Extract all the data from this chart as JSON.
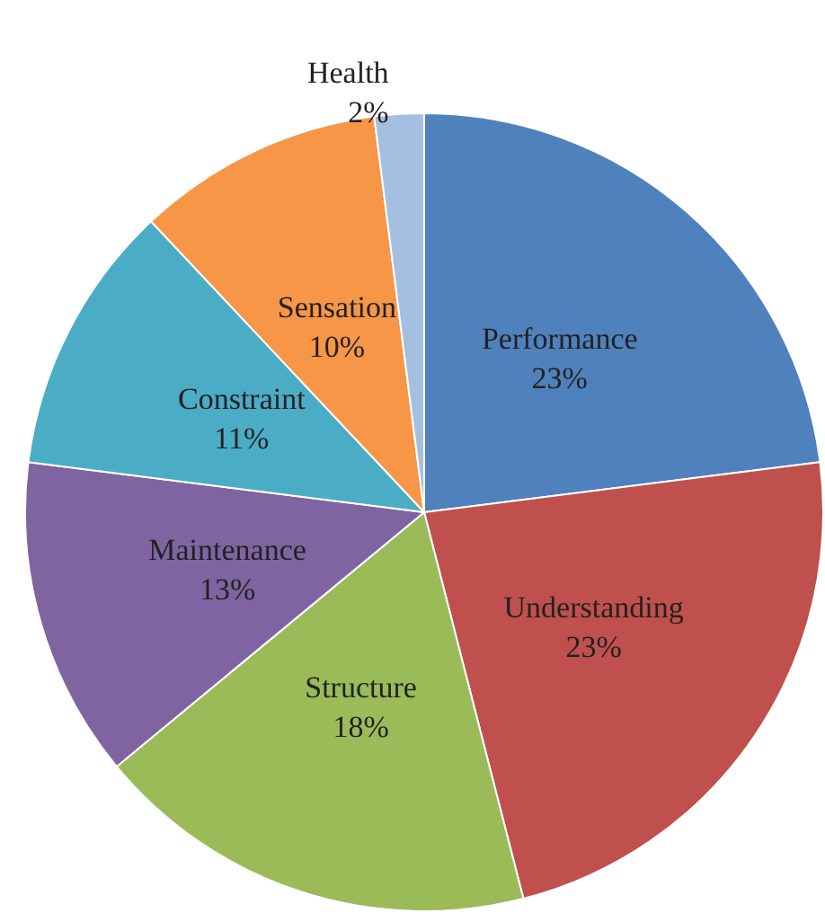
{
  "chart_data": {
    "type": "pie",
    "categories": [
      "Performance",
      "Understanding",
      "Structure",
      "Maintenance",
      "Constraint",
      "Sensation",
      "Health"
    ],
    "values": [
      23,
      23,
      18,
      13,
      11,
      10,
      2
    ],
    "value_labels": [
      "23%",
      "23%",
      "18%",
      "13%",
      "11%",
      "10%",
      "2%"
    ],
    "colors": [
      "#4f81bd",
      "#c0504d",
      "#9bbb59",
      "#8064a2",
      "#4bacc6",
      "#f79646",
      "#a5bfe0"
    ],
    "legend": false
  }
}
